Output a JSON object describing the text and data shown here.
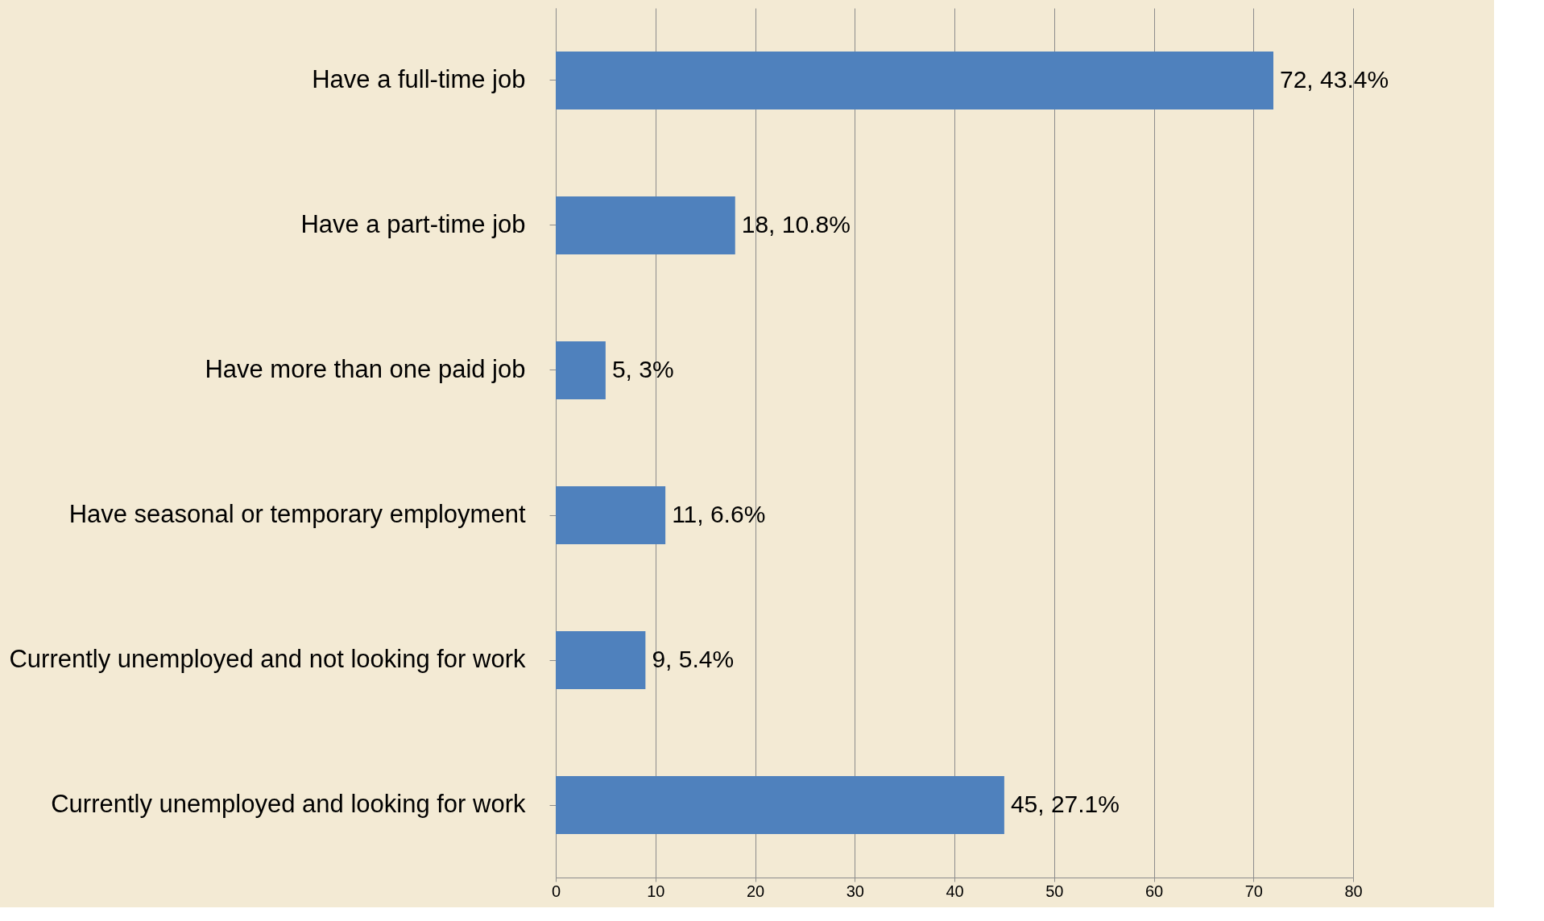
{
  "chart_data": {
    "type": "bar",
    "orientation": "horizontal",
    "categories": [
      "Have a full-time job",
      "Have a part-time job",
      "Have more than one paid job",
      "Have seasonal or temporary employment",
      "Currently unemployed and not looking for work",
      "Currently unemployed and looking for work"
    ],
    "values": [
      72,
      18,
      5,
      11,
      9,
      45
    ],
    "value_labels": [
      "72, 43.4%",
      "18, 10.8%",
      "5, 3%",
      "11, 6.6%",
      "9, 5.4%",
      "45, 27.1%"
    ],
    "color": "#4f81bd",
    "xlim": [
      0,
      80
    ],
    "xticks": [
      0,
      10,
      20,
      30,
      40,
      50,
      60,
      70,
      80
    ],
    "grid": "x"
  }
}
